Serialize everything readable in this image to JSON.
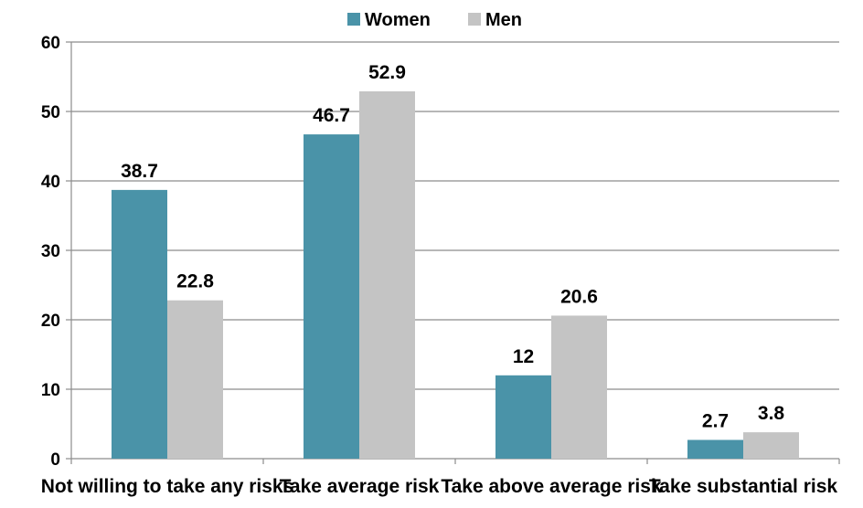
{
  "chart_data": {
    "type": "bar",
    "categories": [
      "Not willing to take any risks",
      "Take average risk",
      "Take above average risk",
      "Take substantial risk"
    ],
    "series": [
      {
        "name": "Women",
        "values": [
          38.7,
          46.7,
          12,
          2.7
        ],
        "color": "#4a93a8"
      },
      {
        "name": "Men",
        "values": [
          22.8,
          52.9,
          20.6,
          3.8
        ],
        "color": "#c4c4c4"
      }
    ],
    "value_labels": {
      "Women": [
        "38.7",
        "46.7",
        "12",
        "2.7"
      ],
      "Men": [
        "22.8",
        "52.9",
        "20.6",
        "3.8"
      ]
    },
    "yticks": [
      "0",
      "10",
      "20",
      "30",
      "40",
      "50",
      "60"
    ],
    "ylim": [
      0,
      60
    ],
    "grid": true,
    "legend": "top-center"
  }
}
